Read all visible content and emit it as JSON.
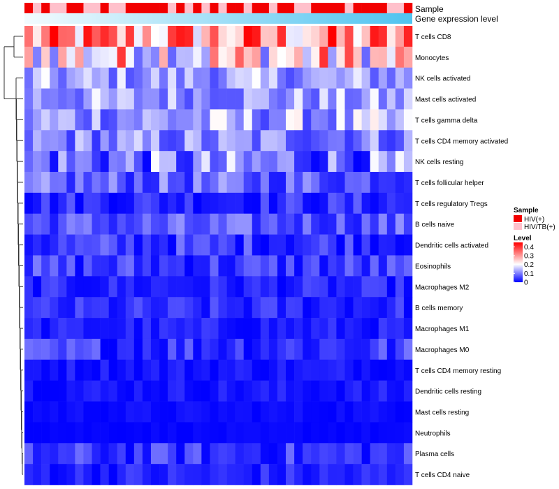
{
  "chart_data": {
    "type": "heatmap",
    "title": "",
    "annotation_labels": {
      "sample": "Sample",
      "gene_level": "Gene expression level"
    },
    "rows": [
      "T cells CD8",
      "Monocytes",
      "NK cells activated",
      "Mast cells activated",
      "T cells gamma delta",
      "T cells CD4 memory activated",
      "NK cells resting",
      "T cells follicular helper",
      "T cells regulatory  Tregs",
      "B cells naive",
      "Dendritic cells activated",
      "Eosinophils",
      "Macrophages M2",
      "B cells memory",
      "Macrophages M1",
      "Macrophages M0",
      "T cells CD4 memory resting",
      "Dendritic cells resting",
      "Mast cells resting",
      "Neutrophils",
      "Plasma cells",
      "T cells CD4 naive"
    ],
    "n_samples": 46,
    "sample_groups": [
      1,
      0,
      1,
      0,
      0,
      1,
      1,
      0,
      0,
      1,
      0,
      0,
      1,
      1,
      1,
      1,
      1,
      0,
      1,
      0,
      1,
      0,
      1,
      0,
      1,
      1,
      0,
      1,
      1,
      0,
      1,
      1,
      0,
      0,
      1,
      1,
      1,
      1,
      0,
      1,
      1,
      1,
      1,
      0,
      0,
      1
    ],
    "row_value_ranges": [
      [
        0.15,
        0.48
      ],
      [
        0.08,
        0.42
      ],
      [
        0.06,
        0.2
      ],
      [
        0.06,
        0.2
      ],
      [
        0.05,
        0.22
      ],
      [
        0.04,
        0.18
      ],
      [
        0.0,
        0.2
      ],
      [
        0.02,
        0.14
      ],
      [
        0.0,
        0.08
      ],
      [
        0.02,
        0.12
      ],
      [
        0.0,
        0.1
      ],
      [
        0.0,
        0.1
      ],
      [
        0.0,
        0.06
      ],
      [
        0.0,
        0.07
      ],
      [
        0.0,
        0.05
      ],
      [
        0.0,
        0.1
      ],
      [
        0.0,
        0.04
      ],
      [
        0.0,
        0.04
      ],
      [
        0.0,
        0.02
      ],
      [
        0.0,
        0.01
      ],
      [
        0.0,
        0.09
      ],
      [
        0.0,
        0.06
      ]
    ],
    "legend": {
      "sample_title": "Sample",
      "sample_groups": [
        {
          "label": "HIV(+)",
          "color": "#f20000"
        },
        {
          "label": "HIV/TB(+)",
          "color": "#ffc0cb"
        }
      ],
      "level_title": "Level",
      "level_ticks": [
        "0.4",
        "0.3",
        "0.2",
        "0.1",
        "0"
      ],
      "level_range": [
        0,
        0.45
      ]
    },
    "colors": {
      "low": "#0000ff",
      "mid": "#ffffff",
      "high": "#ff0000",
      "gene_level_start": "#f3fbfe",
      "gene_level_end": "#4fc3f0"
    }
  }
}
